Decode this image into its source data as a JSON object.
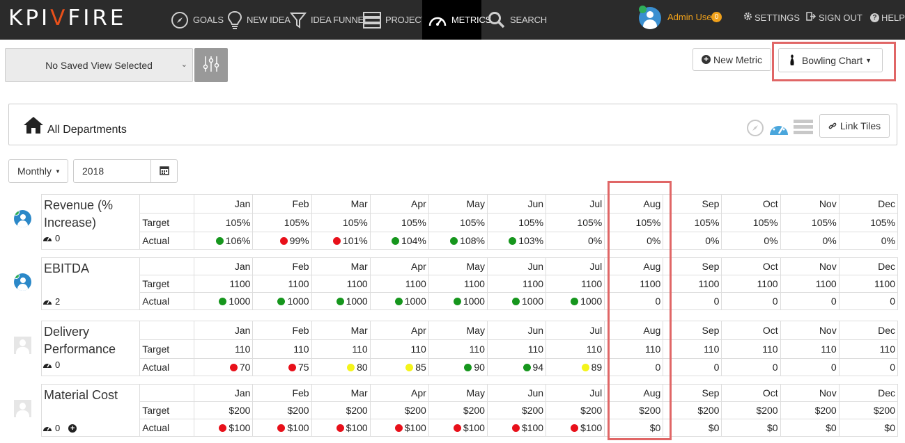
{
  "app": {
    "logo_prefix": "KPI",
    "logo_mark": "V",
    "logo_suffix": "FIRE"
  },
  "nav": {
    "items": [
      {
        "label": "GOALS",
        "icon": "compass-icon"
      },
      {
        "label": "NEW IDEA",
        "icon": "lightbulb-icon"
      },
      {
        "label": "IDEA FUNNEL",
        "icon": "funnel-icon"
      },
      {
        "label": "PROJECTS",
        "icon": "projects-icon"
      },
      {
        "label": "METRICS",
        "icon": "speedometer-icon"
      },
      {
        "label": "SEARCH",
        "icon": "search-icon"
      }
    ],
    "user": "Admin User",
    "notifications": "0",
    "settings": "SETTINGS",
    "signout": "SIGN OUT",
    "help": "HELP"
  },
  "toolbar": {
    "saved_view": "No Saved View Selected",
    "new_metric": "New Metric",
    "chart_mode": "Bowling Chart",
    "link_tiles": "Link Tiles"
  },
  "department": {
    "title": "All Departments"
  },
  "filters": {
    "period": "Monthly",
    "year": "2018"
  },
  "labels": {
    "target": "Target",
    "actual": "Actual"
  },
  "months": [
    "Jan",
    "Feb",
    "Mar",
    "Apr",
    "May",
    "Jun",
    "Jul",
    "Aug",
    "Sep",
    "Oct",
    "Nov",
    "Dec"
  ],
  "colors": {
    "green": "#16961d",
    "red": "#e8101a",
    "yellow": "#f4f41a",
    "accent": "#e8501a",
    "highlight": "#e06666"
  },
  "metrics": [
    {
      "name": "Revenue (% Increase)",
      "owner": "user",
      "count": "0",
      "target": [
        "105%",
        "105%",
        "105%",
        "105%",
        "105%",
        "105%",
        "105%",
        "105%",
        "105%",
        "105%",
        "105%",
        "105%"
      ],
      "actual": [
        "106%",
        "99%",
        "101%",
        "104%",
        "108%",
        "103%",
        "0%",
        "0%",
        "0%",
        "0%",
        "0%",
        "0%"
      ],
      "status": [
        "green",
        "red",
        "red",
        "green",
        "green",
        "green",
        "",
        "",
        "",
        "",
        "",
        ""
      ]
    },
    {
      "name": "EBITDA",
      "owner": "user",
      "count": "2",
      "target": [
        "1100",
        "1100",
        "1100",
        "1100",
        "1100",
        "1100",
        "1100",
        "1100",
        "1100",
        "1100",
        "1100",
        "1100"
      ],
      "actual": [
        "1000",
        "1000",
        "1000",
        "1000",
        "1000",
        "1000",
        "1000",
        "0",
        "0",
        "0",
        "0",
        "0"
      ],
      "status": [
        "green",
        "green",
        "green",
        "green",
        "green",
        "green",
        "green",
        "",
        "",
        "",
        "",
        ""
      ]
    },
    {
      "name": "Delivery Performance",
      "owner": "ghost",
      "count": "0",
      "target": [
        "110",
        "110",
        "110",
        "110",
        "110",
        "110",
        "110",
        "110",
        "110",
        "110",
        "110",
        "110"
      ],
      "actual": [
        "70",
        "75",
        "80",
        "85",
        "90",
        "94",
        "89",
        "0",
        "0",
        "0",
        "0",
        "0"
      ],
      "status": [
        "red",
        "red",
        "yellow",
        "yellow",
        "green",
        "green",
        "yellow",
        "",
        "",
        "",
        "",
        ""
      ]
    },
    {
      "name": "Material Cost",
      "owner": "ghost",
      "count": "0",
      "target": [
        "$200",
        "$200",
        "$200",
        "$200",
        "$200",
        "$200",
        "$200",
        "$200",
        "$200",
        "$200",
        "$200",
        "$200"
      ],
      "actual": [
        "$100",
        "$100",
        "$100",
        "$100",
        "$100",
        "$100",
        "$100",
        "$0",
        "$0",
        "$0",
        "$0",
        "$0"
      ],
      "status": [
        "red",
        "red",
        "red",
        "red",
        "red",
        "red",
        "red",
        "",
        "",
        "",
        "",
        ""
      ]
    }
  ]
}
